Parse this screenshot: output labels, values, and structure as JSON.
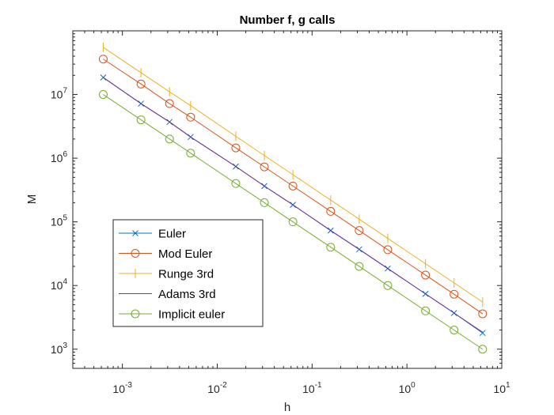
{
  "chart_data": {
    "type": "line",
    "title": "Number f, g calls",
    "xlabel": "h",
    "ylabel": "M",
    "xscale": "log",
    "yscale": "log",
    "xlim": [
      0.0003,
      10
    ],
    "ylim": [
      500,
      100000000
    ],
    "grid": false,
    "legend_position": "bottom-left",
    "x_ticks": [
      {
        "value": 0.001,
        "base": "10",
        "exp": "-3"
      },
      {
        "value": 0.01,
        "base": "10",
        "exp": "-2"
      },
      {
        "value": 0.1,
        "base": "10",
        "exp": "-1"
      },
      {
        "value": 1,
        "base": "10",
        "exp": "0"
      },
      {
        "value": 10,
        "base": "10",
        "exp": "1"
      }
    ],
    "y_ticks": [
      {
        "value": 1000,
        "base": "10",
        "exp": "3"
      },
      {
        "value": 10000,
        "base": "10",
        "exp": "4"
      },
      {
        "value": 100000,
        "base": "10",
        "exp": "5"
      },
      {
        "value": 1000000,
        "base": "10",
        "exp": "6"
      },
      {
        "value": 10000000,
        "base": "10",
        "exp": "7"
      }
    ],
    "x": [
      0.000628,
      0.00157,
      0.00314,
      0.00524,
      0.0157,
      0.0314,
      0.0628,
      0.157,
      0.314,
      0.628,
      1.57,
      3.14,
      6.28
    ],
    "series": [
      {
        "name": "Euler",
        "color": "#0072BD",
        "marker": "x",
        "values": [
          18500000,
          7200000,
          3700000,
          2150000,
          740000,
          365000,
          185000,
          73000,
          37000,
          18500,
          7400,
          3700,
          1800
        ]
      },
      {
        "name": "Mod Euler",
        "color": "#D95319",
        "marker": "o",
        "values": [
          36000000,
          14600000,
          7200000,
          4400000,
          1450000,
          730000,
          365000,
          146000,
          73000,
          36500,
          14600,
          7300,
          3600
        ]
      },
      {
        "name": "Runge 3rd",
        "color": "#EDB120",
        "marker": "|",
        "values": [
          55000000,
          22000000,
          11000000,
          6700000,
          2200000,
          1100000,
          550000,
          220000,
          110000,
          55000,
          22000,
          11000,
          5500
        ]
      },
      {
        "name": "Adams 3rd",
        "color": "#7E2F8E",
        "marker": "none",
        "values": [
          18500000,
          7200000,
          3700000,
          2150000,
          740000,
          365000,
          185000,
          73000,
          37000,
          18500,
          7400,
          3700,
          1850
        ]
      },
      {
        "name": "Implicit euler",
        "color": "#77AC30",
        "marker": "o",
        "values": [
          10000000,
          4000000,
          2000000,
          1200000,
          400000,
          200000,
          100000,
          40000,
          20000,
          10000,
          4000,
          2000,
          1000
        ]
      }
    ]
  }
}
